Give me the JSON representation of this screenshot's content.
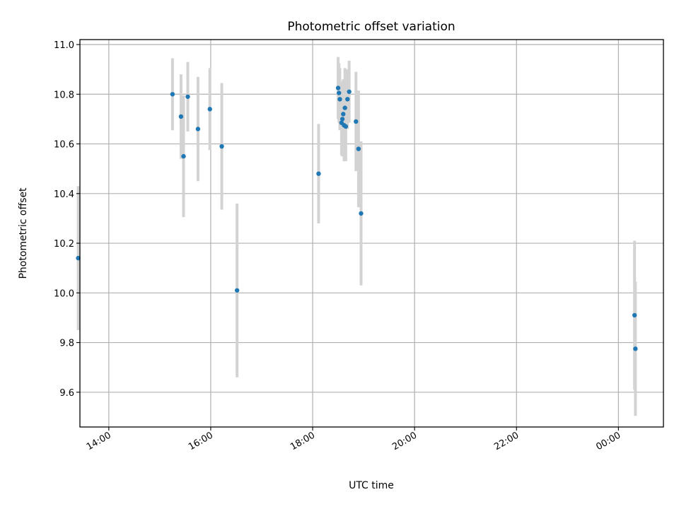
{
  "chart_data": {
    "type": "scatter",
    "title": "Photometric offset variation",
    "xlabel": "UTC time",
    "ylabel": "Photometric offset",
    "x_axis_type": "time",
    "xlim": [
      "13:26",
      "00:53 +1d"
    ],
    "ylim": [
      9.46,
      11.02
    ],
    "x_ticks": [
      {
        "time": "14:00",
        "label": "14:00"
      },
      {
        "time": "16:00",
        "label": "16:00"
      },
      {
        "time": "18:00",
        "label": "18:00"
      },
      {
        "time": "20:00",
        "label": "20:00"
      },
      {
        "time": "22:00",
        "label": "22:00"
      },
      {
        "time": "00:00 +1d",
        "label": "00:00"
      }
    ],
    "y_ticks": [
      9.6,
      9.8,
      10.0,
      10.2,
      10.4,
      10.6,
      10.8,
      11.0
    ],
    "grid": true,
    "point_color": "#1f77b4",
    "errorbar_color": "#d3d3d3",
    "points": [
      {
        "time": "13:24",
        "y": 10.14,
        "err": 0.29
      },
      {
        "time": "15:15",
        "y": 10.8,
        "err": 0.145
      },
      {
        "time": "15:25",
        "y": 10.71,
        "err": 0.17
      },
      {
        "time": "15:28",
        "y": 10.55,
        "err": 0.245
      },
      {
        "time": "15:33",
        "y": 10.79,
        "err": 0.14
      },
      {
        "time": "15:45",
        "y": 10.66,
        "err": 0.21
      },
      {
        "time": "15:59",
        "y": 10.74,
        "err": 0.165
      },
      {
        "time": "16:13",
        "y": 10.59,
        "err": 0.255
      },
      {
        "time": "16:31",
        "y": 10.01,
        "err": 0.35
      },
      {
        "time": "18:07",
        "y": 10.48,
        "err": 0.2
      },
      {
        "time": "18:30",
        "y": 10.825,
        "err": 0.125
      },
      {
        "time": "18:31",
        "y": 10.805,
        "err": 0.12
      },
      {
        "time": "18:32",
        "y": 10.78,
        "err": 0.125
      },
      {
        "time": "18:34",
        "y": 10.685,
        "err": 0.13
      },
      {
        "time": "18:35",
        "y": 10.7,
        "err": 0.15
      },
      {
        "time": "18:36",
        "y": 10.72,
        "err": 0.14
      },
      {
        "time": "18:37",
        "y": 10.675,
        "err": 0.145
      },
      {
        "time": "18:38",
        "y": 10.745,
        "err": 0.16
      },
      {
        "time": "18:39",
        "y": 10.67,
        "err": 0.14
      },
      {
        "time": "18:41",
        "y": 10.78,
        "err": 0.12
      },
      {
        "time": "18:43",
        "y": 10.81,
        "err": 0.125
      },
      {
        "time": "18:51",
        "y": 10.69,
        "err": 0.2
      },
      {
        "time": "18:54",
        "y": 10.58,
        "err": 0.235
      },
      {
        "time": "18:57",
        "y": 10.32,
        "err": 0.29
      },
      {
        "time": "00:19 +1d",
        "y": 9.91,
        "err": 0.3
      },
      {
        "time": "00:20 +1d",
        "y": 9.775,
        "err": 0.27
      }
    ]
  }
}
